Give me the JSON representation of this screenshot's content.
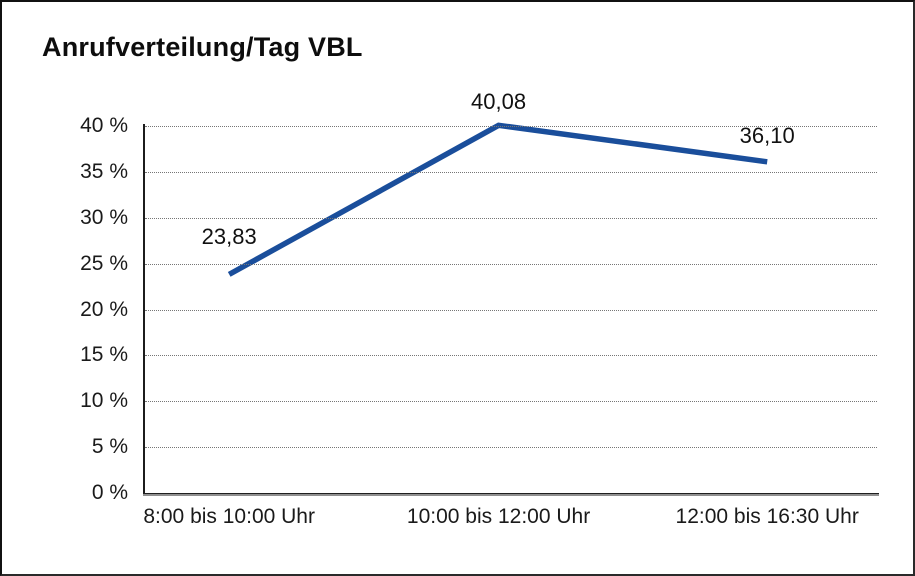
{
  "frame": {
    "background": "#ffffff",
    "border_color": "#111111"
  },
  "chart_data": {
    "type": "line",
    "title": "Anrufverteilung/Tag VBL",
    "categories": [
      "8:00 bis 10:00 Uhr",
      "10:00 bis 12:00 Uhr",
      "12:00 bis 16:30 Uhr"
    ],
    "values": [
      23.83,
      40.08,
      36.1
    ],
    "point_labels": [
      "23,83",
      "40,08",
      "36,10"
    ],
    "xlabel": "",
    "ylabel": "",
    "ylim": [
      0,
      40
    ],
    "y_tick_step": 5,
    "y_ticks": [
      {
        "value": 0,
        "label": "0 %"
      },
      {
        "value": 5,
        "label": "5 %"
      },
      {
        "value": 10,
        "label": "10 %"
      },
      {
        "value": 15,
        "label": "15 %"
      },
      {
        "value": 20,
        "label": "20 %"
      },
      {
        "value": 25,
        "label": "25 %"
      },
      {
        "value": 30,
        "label": "30 %"
      },
      {
        "value": 35,
        "label": "35 %"
      },
      {
        "value": 40,
        "label": "40 %"
      }
    ],
    "grid": "horizontal-dotted",
    "legend": "none",
    "line_color": "#1A4E9B",
    "gridline_color": "#767676",
    "axis_color": "#1c1c1c",
    "text_color": "#1a1a1a"
  }
}
